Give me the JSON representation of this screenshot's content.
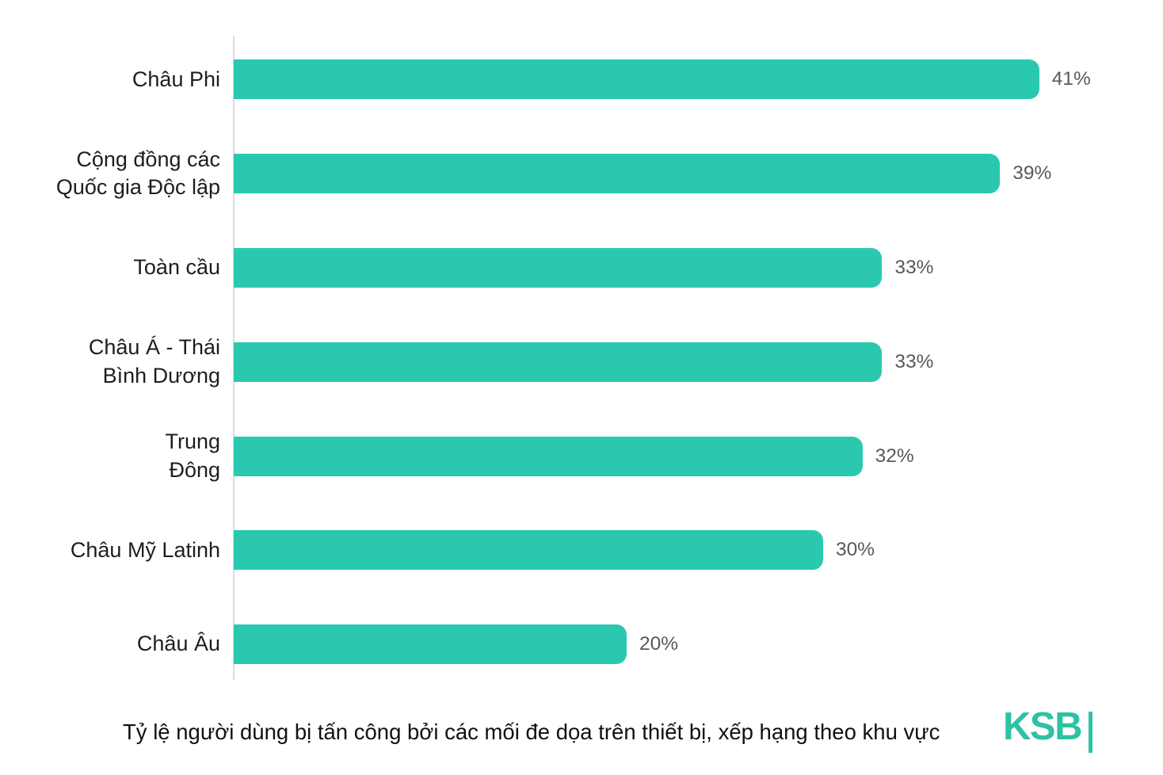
{
  "chart_data": {
    "type": "bar",
    "orientation": "horizontal",
    "title": "",
    "xlabel": "",
    "ylabel": "",
    "categories": [
      "Châu Phi",
      "Cộng đồng các\nQuốc gia Độc lập",
      "Toàn cầu",
      "Châu Á - Thái\nBình Dương",
      "Trung\nĐông",
      "Châu Mỹ Latinh",
      "Châu Âu"
    ],
    "values": [
      41,
      39,
      33,
      33,
      32,
      30,
      20
    ],
    "value_labels": [
      "41%",
      "39%",
      "33%",
      "33%",
      "32%",
      "30%",
      "20%"
    ],
    "xlim": [
      0,
      46
    ],
    "grid": false,
    "legend": "none",
    "bar_color": "#2bc8b0",
    "value_label_color": "#58595b",
    "category_label_color": "#1e1e1e",
    "axis_line_color": "#dcdcdc"
  },
  "caption": "Tỷ lệ người dùng bị tấn công bởi các mối đe dọa trên thiết bị, xếp hạng theo khu vực",
  "logo": {
    "text": "KSB",
    "color": "#2fc1a5"
  }
}
